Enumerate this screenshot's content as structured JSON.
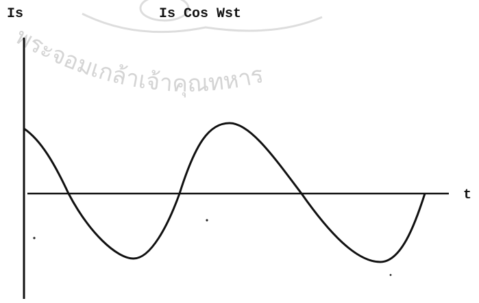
{
  "watermark": "พระจอมเกล้าเจ้าคุณทหาร",
  "labels": {
    "y_axis": "Is",
    "curve": "Is Cos Wst",
    "x_axis": "t"
  }
}
